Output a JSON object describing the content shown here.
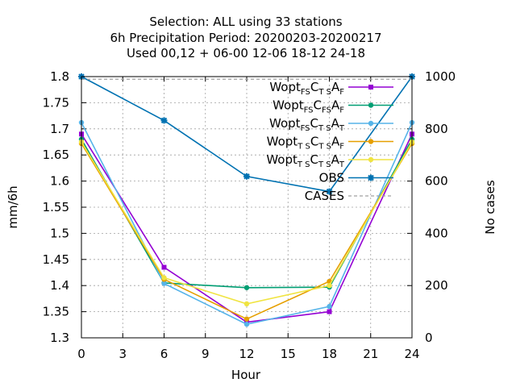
{
  "chart_data": {
    "type": "line",
    "title_lines": [
      "Selection: ALL using    33 stations",
      "6h Precipitation   Period: 20200203-20200217",
      "Used  00,12  + 06-00 12-06 18-12 24-18"
    ],
    "xlabel": "Hour",
    "ylabel": "mm/6h",
    "y2label": "No cases",
    "xlim": [
      0,
      24
    ],
    "ylim": [
      1.3,
      1.8
    ],
    "y2lim": [
      0,
      1000
    ],
    "xticks": [
      0,
      3,
      6,
      9,
      12,
      15,
      18,
      21,
      24
    ],
    "yticks": [
      1.3,
      1.35,
      1.4,
      1.45,
      1.5,
      1.55,
      1.6,
      1.65,
      1.7,
      1.75,
      1.8
    ],
    "y2ticks": [
      0,
      200,
      400,
      600,
      800,
      1000
    ],
    "x": [
      0,
      6,
      12,
      18,
      24
    ],
    "grid": true,
    "legend_position": "top-right",
    "series": [
      {
        "label": [
          [
            "Wopt",
            ""
          ],
          [
            "FS",
            "sub"
          ],
          [
            "C",
            ""
          ],
          [
            "T S",
            "sub"
          ],
          [
            "A",
            ""
          ],
          [
            "F",
            "sub"
          ]
        ],
        "color": "#9400d3",
        "marker": "square",
        "axis": "y",
        "values": [
          1.69,
          1.435,
          1.33,
          1.35,
          1.69
        ]
      },
      {
        "label": [
          [
            "Wopt",
            ""
          ],
          [
            "FS",
            "sub"
          ],
          [
            "C",
            ""
          ],
          [
            "FS",
            "sub"
          ],
          [
            "A",
            ""
          ],
          [
            "F",
            "sub"
          ]
        ],
        "color": "#009e73",
        "marker": "circle",
        "axis": "y",
        "values": [
          1.68,
          1.405,
          1.396,
          1.397,
          1.68
        ]
      },
      {
        "label": [
          [
            "Wopt",
            ""
          ],
          [
            "FS",
            "sub"
          ],
          [
            "C",
            ""
          ],
          [
            "T S",
            "sub"
          ],
          [
            "A",
            ""
          ],
          [
            "T",
            "sub"
          ]
        ],
        "color": "#56b4e9",
        "marker": "circle",
        "axis": "y",
        "values": [
          1.712,
          1.404,
          1.326,
          1.36,
          1.712
        ]
      },
      {
        "label": [
          [
            "Wopt",
            ""
          ],
          [
            "T S",
            "sub"
          ],
          [
            "C",
            ""
          ],
          [
            "T S",
            "sub"
          ],
          [
            "A",
            ""
          ],
          [
            "F",
            "sub"
          ]
        ],
        "color": "#e69f00",
        "marker": "circle",
        "axis": "y",
        "values": [
          1.672,
          1.412,
          1.336,
          1.408,
          1.672
        ]
      },
      {
        "label": [
          [
            "Wopt",
            ""
          ],
          [
            "T S",
            "sub"
          ],
          [
            "C",
            ""
          ],
          [
            "T S",
            "sub"
          ],
          [
            "A",
            ""
          ],
          [
            "T",
            "sub"
          ]
        ],
        "color": "#f0e442",
        "marker": "circle",
        "axis": "y",
        "values": [
          1.675,
          1.415,
          1.365,
          1.4,
          1.675
        ]
      },
      {
        "label": [
          [
            "OBS",
            ""
          ]
        ],
        "color": "#0072b2",
        "marker": "star",
        "axis": "y",
        "values": [
          1.8,
          1.716,
          1.609,
          1.58,
          1.8
        ]
      },
      {
        "label": [
          [
            "CASES",
            ""
          ]
        ],
        "color": "#a0a0a0",
        "marker": "none",
        "dashed": true,
        "axis": "y2",
        "values": [
          990,
          990,
          990,
          990,
          990
        ]
      }
    ]
  }
}
